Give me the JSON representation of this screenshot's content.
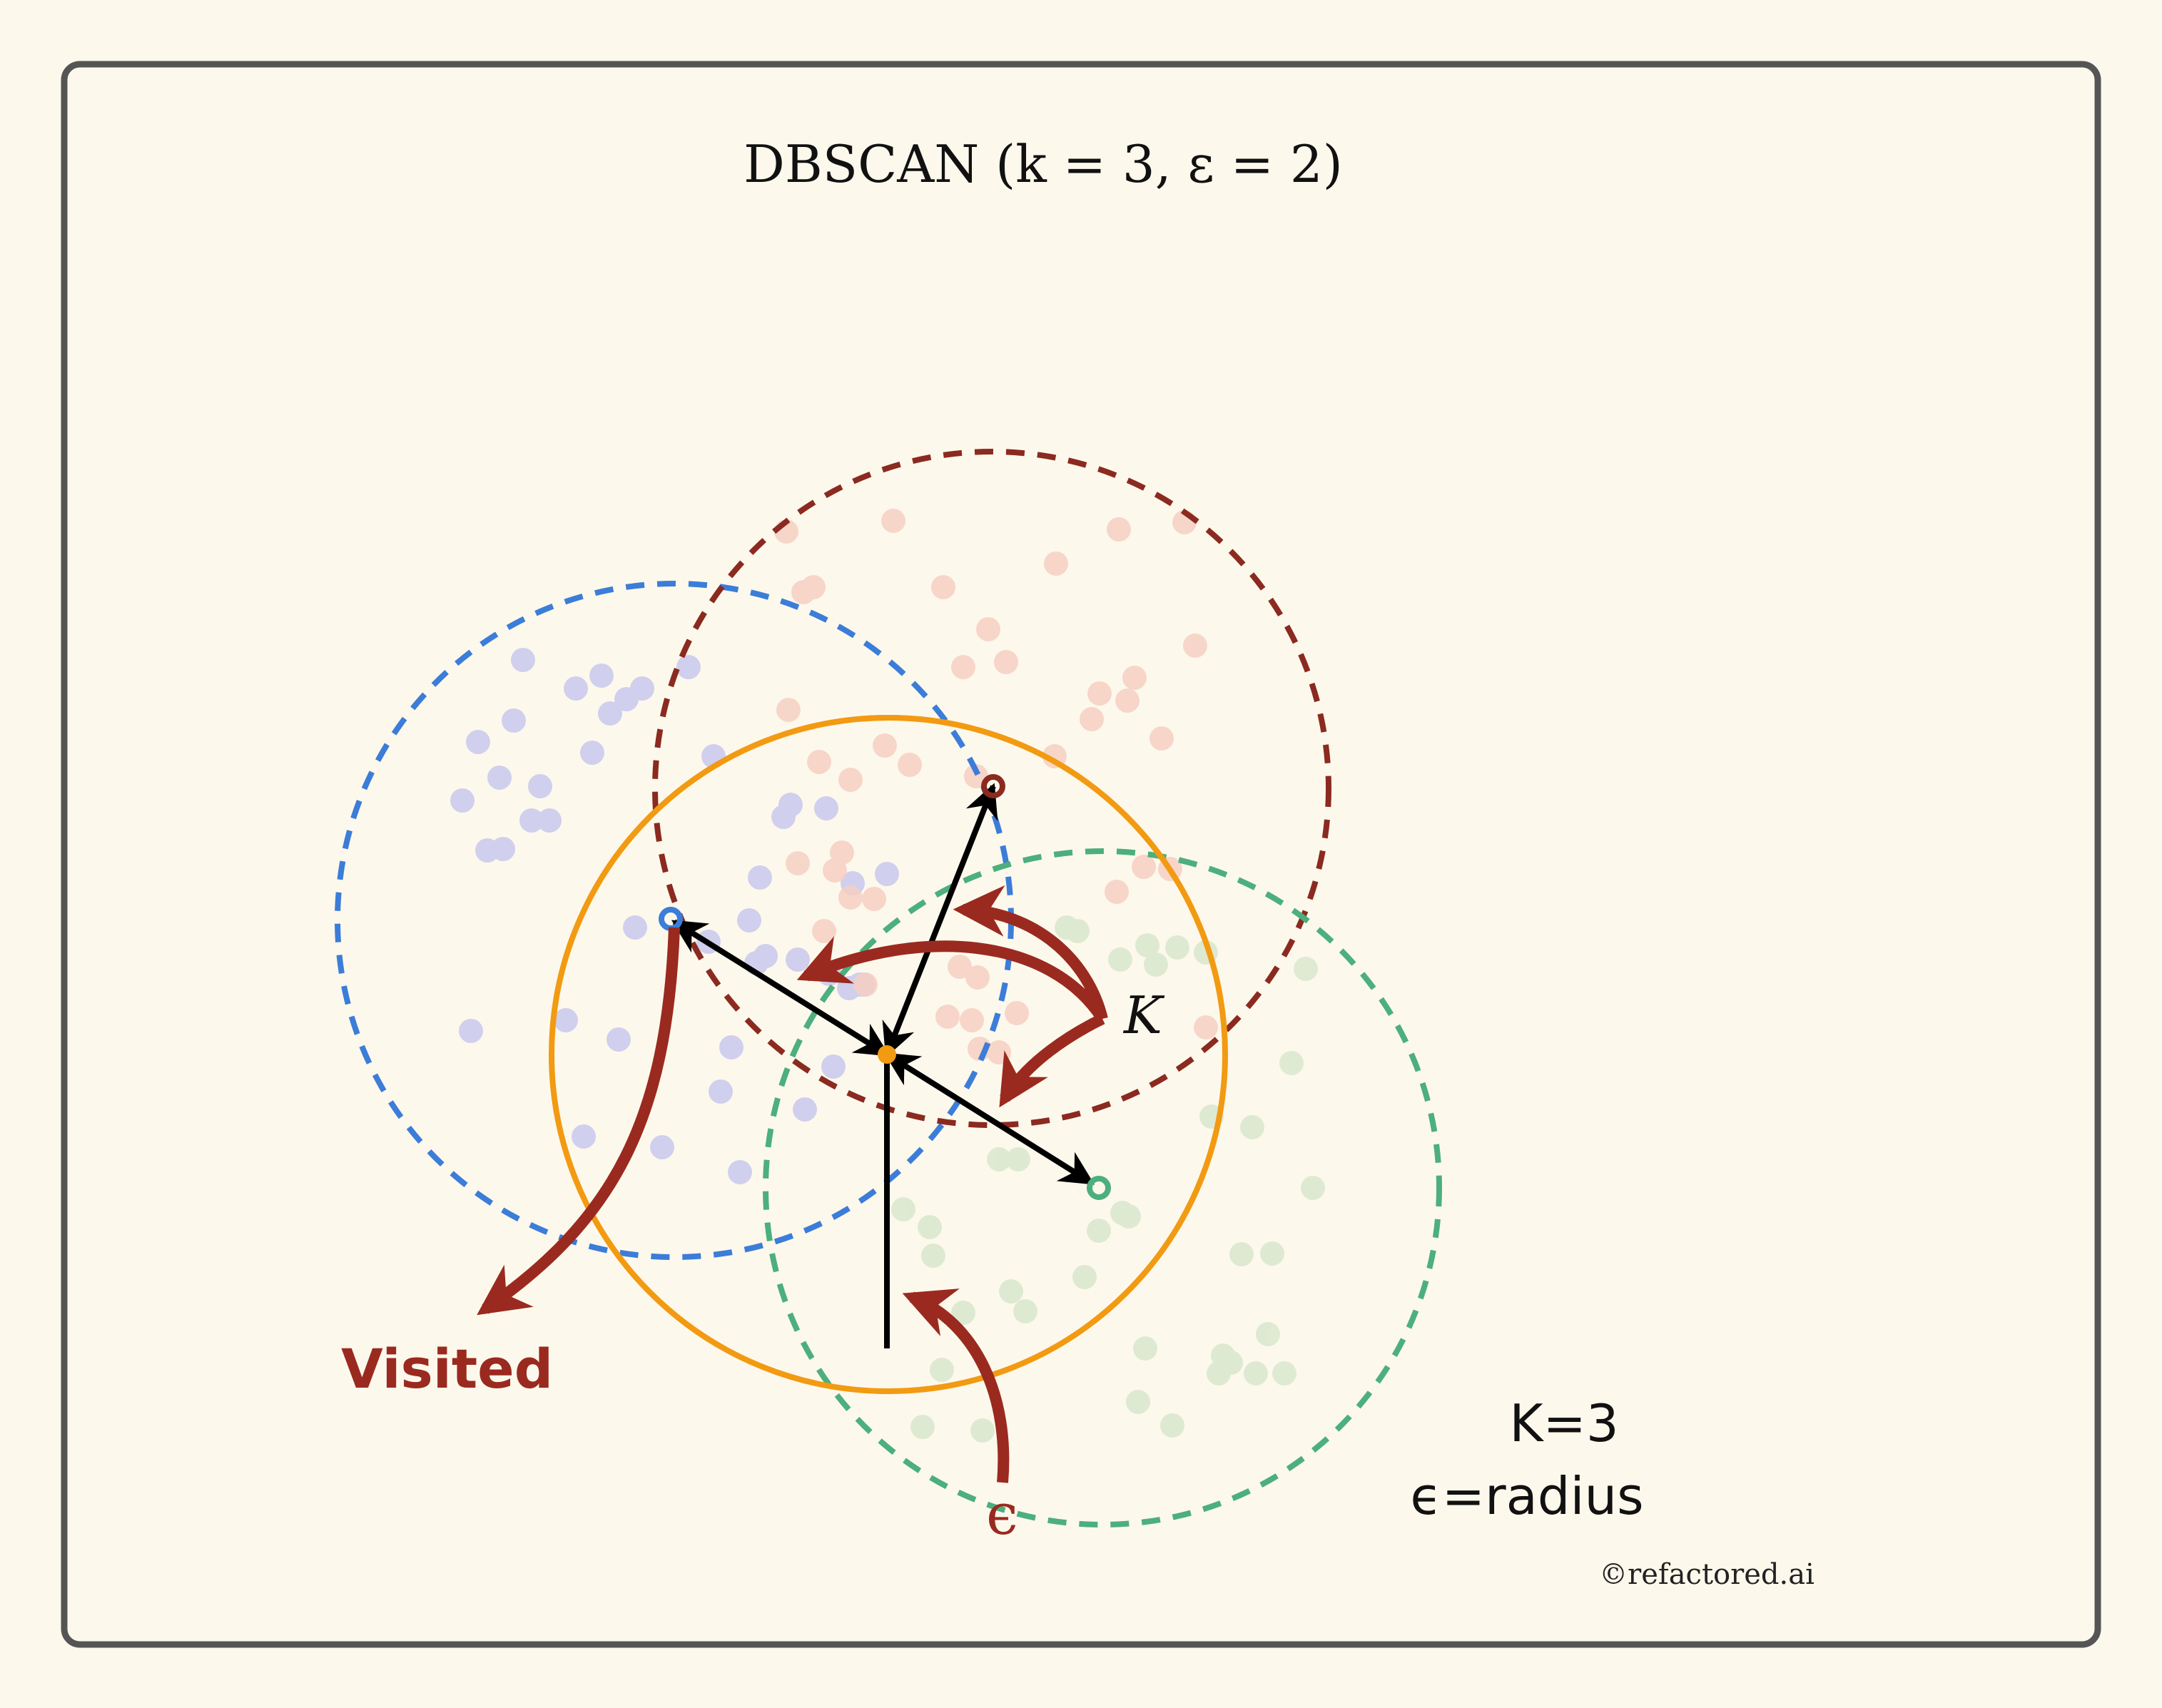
{
  "title": "DBSCAN (k = 3, ε = 2)",
  "labels": {
    "visited": "Visited",
    "k_symbol": "K",
    "epsilon_symbol": "ϵ",
    "legend_k": "K=3",
    "legend_eps": "ϵ=radius",
    "copyright": "©refactored.ai"
  },
  "colors": {
    "background": "#fdf8ec",
    "frame": "#555555",
    "blue_cluster": "#3b7dd8",
    "red_cluster": "#8b2a20",
    "green_cluster": "#4caf7d",
    "orange_core": "#f29a11",
    "annotation_red": "#9a2a1f",
    "arrow_black": "#000000",
    "blue_points": "#c9c8ee",
    "red_points": "#f6d0c4",
    "green_points": "#dbe8d0"
  }
}
